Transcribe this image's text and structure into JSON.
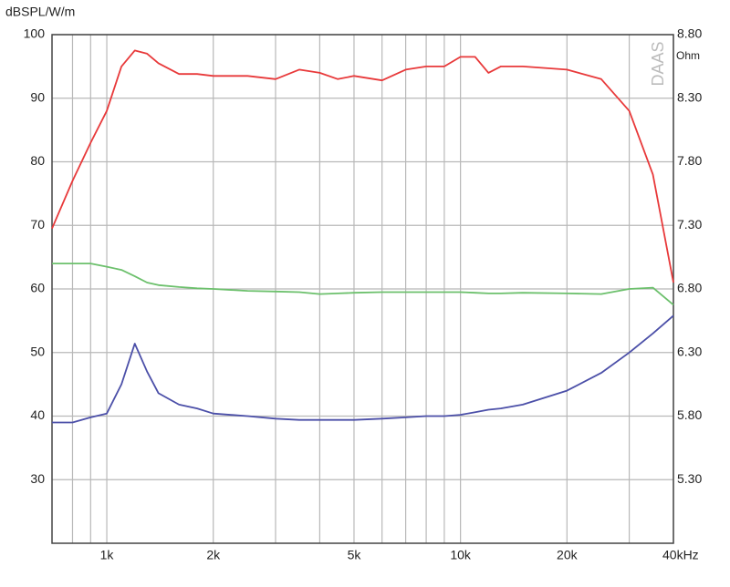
{
  "chart_data": {
    "type": "line",
    "y_label": "dBSPL/W/m",
    "y2_label": "Ohm",
    "watermark": "DAAS",
    "x": [
      700,
      800,
      900,
      1000,
      1100,
      1200,
      1300,
      1400,
      1600,
      1800,
      2000,
      2500,
      3000,
      3500,
      4000,
      4500,
      5000,
      6000,
      7000,
      8000,
      9000,
      10000,
      11000,
      12000,
      13000,
      15000,
      20000,
      25000,
      30000,
      35000,
      40000
    ],
    "series": [
      {
        "color": "#e8393a",
        "values": [
          69.5,
          77,
          83,
          88,
          95,
          97.5,
          97,
          95.5,
          93.8,
          93.8,
          93.5,
          93.5,
          93,
          94.5,
          94,
          93,
          93.5,
          92.8,
          94.5,
          95,
          95,
          96.5,
          96.5,
          94,
          95,
          95,
          94.5,
          93,
          88,
          78,
          61
        ]
      },
      {
        "color": "#6cc06c",
        "values": [
          64,
          64,
          64,
          63.5,
          63,
          62,
          61,
          60.6,
          60.3,
          60.1,
          60,
          59.7,
          59.6,
          59.5,
          59.2,
          59.3,
          59.4,
          59.5,
          59.5,
          59.5,
          59.5,
          59.5,
          59.4,
          59.3,
          59.3,
          59.4,
          59.3,
          59.2,
          60,
          60.2,
          57.5
        ]
      },
      {
        "color": "#4b4fa8",
        "axis": "y2",
        "values": [
          5.75,
          5.75,
          5.79,
          5.82,
          6.05,
          6.37,
          6.15,
          5.98,
          5.89,
          5.86,
          5.82,
          5.8,
          5.78,
          5.77,
          5.77,
          5.77,
          5.77,
          5.78,
          5.79,
          5.8,
          5.8,
          5.81,
          5.83,
          5.85,
          5.86,
          5.89,
          6.0,
          6.14,
          6.3,
          6.45,
          6.59
        ]
      }
    ],
    "xscale": "log",
    "xlim": [
      700,
      40000
    ],
    "xticks": [
      {
        "value": 1000,
        "label": "1k"
      },
      {
        "value": 2000,
        "label": "2k"
      },
      {
        "value": 5000,
        "label": "5k"
      },
      {
        "value": 10000,
        "label": "10k"
      },
      {
        "value": 20000,
        "label": "20k"
      },
      {
        "value": 40000,
        "label": "40kHz"
      }
    ],
    "x_minor_grid": [
      800,
      900,
      3000,
      4000,
      6000,
      7000,
      8000,
      9000,
      30000
    ],
    "ylim": [
      20,
      100
    ],
    "yticks": [
      30,
      40,
      50,
      60,
      70,
      80,
      90,
      100
    ],
    "y2lim": [
      4.8,
      8.8
    ],
    "y2ticks": [
      {
        "value": 5.3,
        "label": "5.30"
      },
      {
        "value": 5.8,
        "label": "5.80"
      },
      {
        "value": 6.3,
        "label": "6.30"
      },
      {
        "value": 6.8,
        "label": "6.80"
      },
      {
        "value": 7.3,
        "label": "7.30"
      },
      {
        "value": 7.8,
        "label": "7.80"
      },
      {
        "value": 8.3,
        "label": "8.30"
      },
      {
        "value": 8.8,
        "label": "8.80"
      }
    ],
    "grid": true
  }
}
